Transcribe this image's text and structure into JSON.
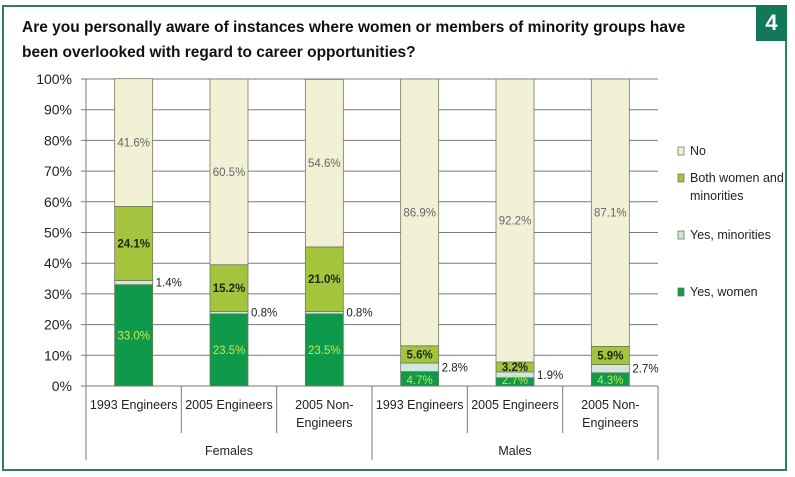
{
  "badge": "4",
  "title_line1": "Are you personally aware of instances where women or members of minority groups have",
  "title_line2": "been overlooked with regard to career opportunities?",
  "chart_data": {
    "type": "bar",
    "stacked": true,
    "title": "Are you personally aware of instances where women or members of minority groups have been overlooked with regard to career opportunities?",
    "xlabel": "",
    "ylabel": "",
    "ylim": [
      0,
      100
    ],
    "yticks": [
      "0%",
      "10%",
      "20%",
      "30%",
      "40%",
      "50%",
      "60%",
      "70%",
      "80%",
      "90%",
      "100%"
    ],
    "grid": true,
    "legend_position": "right",
    "groups": [
      {
        "name": "Females",
        "categories": [
          "1993 Engineers",
          "2005 Engineers",
          "2005 Non-Engineers"
        ]
      },
      {
        "name": "Males",
        "categories": [
          "1993 Engineers",
          "2005 Engineers",
          "2005 Non-Engineers"
        ]
      }
    ],
    "categories": [
      [
        "1993 Engineers"
      ],
      [
        "2005 Engineers"
      ],
      [
        "2005 Non-",
        "Engineers"
      ],
      [
        "1993 Engineers"
      ],
      [
        "2005 Engineers"
      ],
      [
        "2005 Non-",
        "Engineers"
      ]
    ],
    "series": [
      {
        "name": "Yes, women",
        "color": "#0e9a4a",
        "label_color": "#c8e64a",
        "values": [
          33.0,
          23.5,
          23.5,
          4.7,
          2.7,
          4.3
        ],
        "labels": [
          "33.0%",
          "23.5%",
          "23.5%",
          "4.7%",
          "2.7%",
          "4.3%"
        ]
      },
      {
        "name": "Yes, minorities",
        "color": "#cfe7dc",
        "label_color": "#222222",
        "values": [
          1.4,
          0.8,
          0.8,
          2.8,
          1.9,
          2.7
        ],
        "labels": [
          "1.4%",
          "0.8%",
          "0.8%",
          "2.8%",
          "1.9%",
          "2.7%"
        ]
      },
      {
        "name": "Both women and minorities",
        "color": "#a3c43c",
        "label_color": "#1a2a10",
        "values": [
          24.1,
          15.2,
          21.0,
          5.6,
          3.2,
          5.9
        ],
        "labels": [
          "24.1%",
          "15.2%",
          "21.0%",
          "5.6%",
          "3.2%",
          "5.9%"
        ]
      },
      {
        "name": "No",
        "color": "#f2f1d6",
        "label_color": "#666666",
        "values": [
          41.6,
          60.5,
          54.6,
          86.9,
          92.2,
          87.1
        ],
        "labels": [
          "41.6%",
          "60.5%",
          "54.6%",
          "86.9%",
          "92.2%",
          "87.1%"
        ]
      }
    ],
    "legend": [
      {
        "label": [
          "No"
        ],
        "color": "#f2f1d6"
      },
      {
        "label": [
          "Both women and",
          "minorities"
        ],
        "color": "#a3c43c"
      },
      {
        "label": [
          "Yes, minorities"
        ],
        "color": "#cfe7dc"
      },
      {
        "label": [
          "Yes, women"
        ],
        "color": "#0e9a4a"
      }
    ]
  }
}
